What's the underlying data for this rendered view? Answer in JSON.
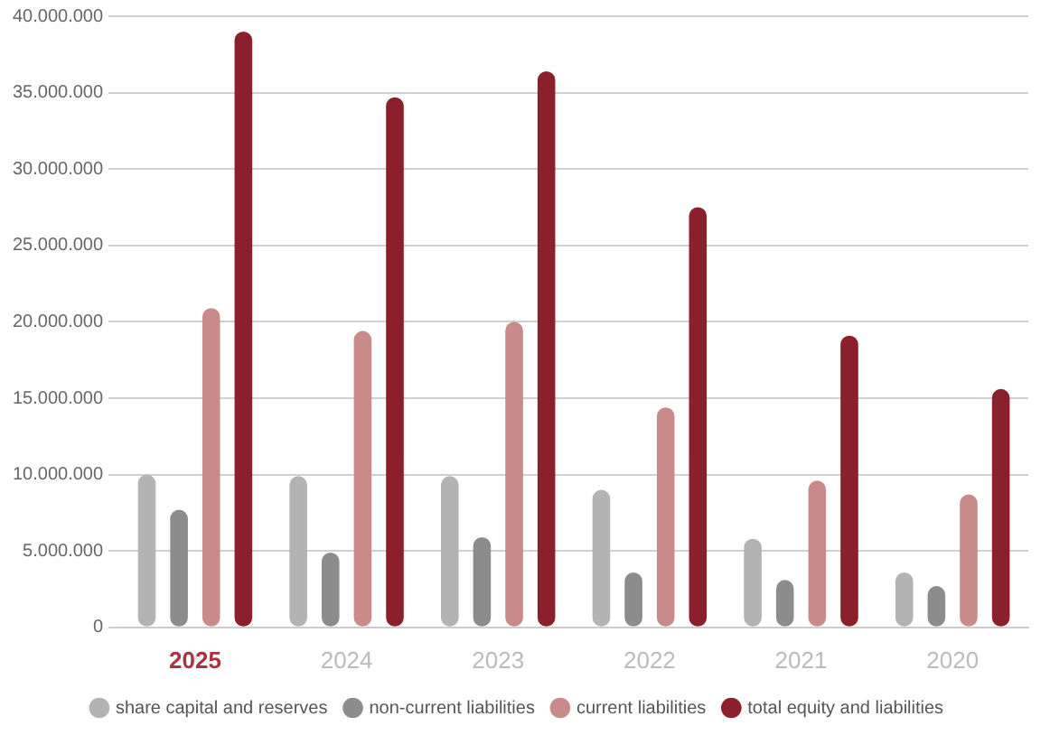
{
  "chart_data": {
    "type": "bar",
    "categories": [
      "2025",
      "2024",
      "2023",
      "2022",
      "2021",
      "2020"
    ],
    "series": [
      {
        "name": "share capital and reserves",
        "color": "#b3b3b3",
        "values": [
          10000000,
          9900000,
          9900000,
          9000000,
          5800000,
          3600000
        ]
      },
      {
        "name": "non-current liabilities",
        "color": "#8c8c8c",
        "values": [
          7700000,
          4900000,
          5900000,
          3600000,
          3100000,
          2700000
        ]
      },
      {
        "name": "current liabilities",
        "color": "#c98a8a",
        "values": [
          20900000,
          19400000,
          20000000,
          14400000,
          9600000,
          8700000
        ]
      },
      {
        "name": "total equity and liabilities",
        "color": "#8b1f2b",
        "values": [
          39000000,
          34700000,
          36400000,
          27500000,
          19100000,
          15600000
        ]
      }
    ],
    "ylim": [
      0,
      40000000
    ],
    "yticks": [
      0,
      {
        "value": 5000000,
        "label": "5.000.000"
      },
      {
        "value": 10000000,
        "label": "10.000.000"
      },
      {
        "value": 15000000,
        "label": "15.000.000"
      },
      {
        "value": 20000000,
        "label": "20.000.000"
      },
      {
        "value": 25000000,
        "label": "25.000.000"
      },
      {
        "value": 30000000,
        "label": "30.000.000"
      },
      {
        "value": 35000000,
        "label": "35.000.000"
      },
      {
        "value": 40000000,
        "label": "40.000.000"
      }
    ],
    "grid": "y",
    "legend": "bottom"
  }
}
